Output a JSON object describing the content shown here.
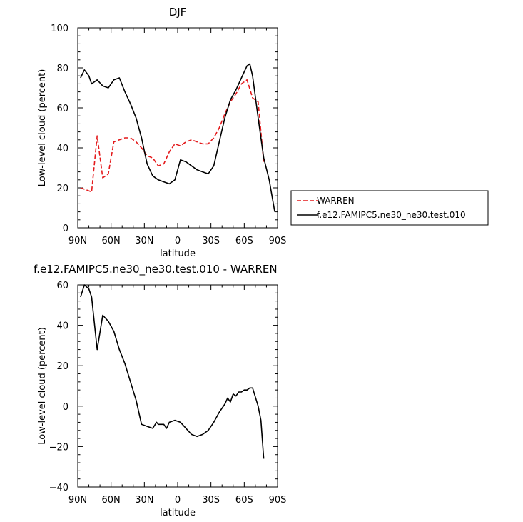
{
  "colors": {
    "warren": "#e41a1c",
    "model": "#000000"
  },
  "legend": {
    "entries": [
      {
        "label": "WARREN",
        "color": "#e41a1c",
        "dash": true
      },
      {
        "label": "f.e12.FAMIPC5.ne30_ne30.test.010",
        "color": "#000000",
        "dash": false
      }
    ]
  },
  "chart_data": [
    {
      "type": "line",
      "title": "DJF",
      "xlabel": "latitude",
      "ylabel": "Low-level cloud (percent)",
      "xlim": [
        90,
        -90
      ],
      "ylim": [
        0,
        100
      ],
      "xticks": [
        90,
        60,
        30,
        0,
        -30,
        -60,
        -90
      ],
      "xtick_labels": [
        "90N",
        "60N",
        "30N",
        "0",
        "30S",
        "60S",
        "90S"
      ],
      "yticks": [
        0,
        20,
        40,
        60,
        80,
        100
      ],
      "ytick_labels": [
        "0",
        "20",
        "40",
        "60",
        "80",
        "100"
      ],
      "grid": false,
      "legend_position": "right",
      "series": [
        {
          "name": "WARREN",
          "color": "#e41a1c",
          "dash": true,
          "x": [
            87.5,
            82.5,
            77.5,
            72.5,
            67.5,
            62.5,
            57.5,
            52.5,
            47.5,
            42.5,
            37.5,
            32.5,
            27.5,
            22.5,
            17.5,
            12.5,
            7.5,
            2.5,
            -2.5,
            -7.5,
            -12.5,
            -17.5,
            -22.5,
            -27.5,
            -32.5,
            -37.5,
            -42.5,
            -47.5,
            -52.5,
            -57.5,
            -62.5,
            -67.5,
            -72.5,
            -77.5
          ],
          "y": [
            20,
            19,
            18,
            46,
            25,
            27,
            43,
            44,
            45,
            45,
            43,
            40,
            36,
            35,
            31,
            32,
            38,
            42,
            41,
            43,
            44,
            43,
            42,
            42,
            45,
            50,
            57,
            63,
            67,
            72,
            74,
            65,
            63,
            33
          ]
        },
        {
          "name": "f.e12.FAMIPC5.ne30_ne30.test.010",
          "color": "#000000",
          "dash": false,
          "x": [
            87.5,
            84,
            80,
            77.5,
            72.5,
            67.5,
            62.5,
            57.5,
            52.5,
            47.5,
            42.5,
            37.5,
            32.5,
            27.5,
            22.5,
            17.5,
            12.5,
            7.5,
            2.5,
            -2.5,
            -7.5,
            -12.5,
            -17.5,
            -22.5,
            -27.5,
            -32.5,
            -37.5,
            -42.5,
            -47.5,
            -52.5,
            -57.5,
            -62.5,
            -65,
            -67.5,
            -72.5,
            -77.5,
            -82.5,
            -87.5
          ],
          "y": [
            75,
            79,
            76,
            72,
            74,
            71,
            70,
            74,
            75,
            68,
            62,
            55,
            45,
            32,
            26,
            24,
            23,
            22,
            24,
            34,
            33,
            31,
            29,
            28,
            27,
            31,
            43,
            55,
            64,
            69,
            75,
            81,
            82,
            76,
            55,
            35,
            24,
            8
          ]
        }
      ]
    },
    {
      "type": "line",
      "title": "f.e12.FAMIPC5.ne30_ne30.test.010 - WARREN",
      "xlabel": "latitude",
      "ylabel": "Low-level cloud (percent)",
      "xlim": [
        90,
        -90
      ],
      "ylim": [
        -40,
        60
      ],
      "xticks": [
        90,
        60,
        30,
        0,
        -30,
        -60,
        -90
      ],
      "xtick_labels": [
        "90N",
        "60N",
        "30N",
        "0",
        "30S",
        "60S",
        "90S"
      ],
      "yticks": [
        -40,
        -20,
        0,
        20,
        40,
        60
      ],
      "ytick_labels": [
        "−40",
        "−20",
        "0",
        "20",
        "40",
        "60"
      ],
      "grid": false,
      "series": [
        {
          "color": "#000000",
          "dash": false,
          "x": [
            87.5,
            84,
            80,
            77.5,
            72.5,
            67.5,
            62.5,
            57.5,
            52.5,
            47.5,
            42.5,
            37.5,
            32.5,
            27.5,
            22.5,
            19,
            17.5,
            12.5,
            10,
            7.5,
            2.5,
            -2.5,
            -7.5,
            -12.5,
            -17.5,
            -22.5,
            -27.5,
            -32.5,
            -37.5,
            -42.5,
            -45,
            -47.5,
            -50,
            -52.5,
            -55,
            -57.5,
            -60,
            -62.5,
            -65,
            -67.5,
            -72.5,
            -75,
            -77.5
          ],
          "y": [
            54,
            60,
            58,
            54,
            28,
            45,
            42,
            37,
            28,
            21,
            12,
            3,
            -9,
            -10,
            -11,
            -8,
            -9,
            -9,
            -11,
            -8,
            -7,
            -8,
            -11,
            -14,
            -15,
            -14,
            -12,
            -8,
            -3,
            1,
            4,
            2,
            6,
            5,
            7,
            7,
            8,
            8,
            9,
            9,
            0,
            -7,
            -26
          ]
        }
      ]
    }
  ]
}
